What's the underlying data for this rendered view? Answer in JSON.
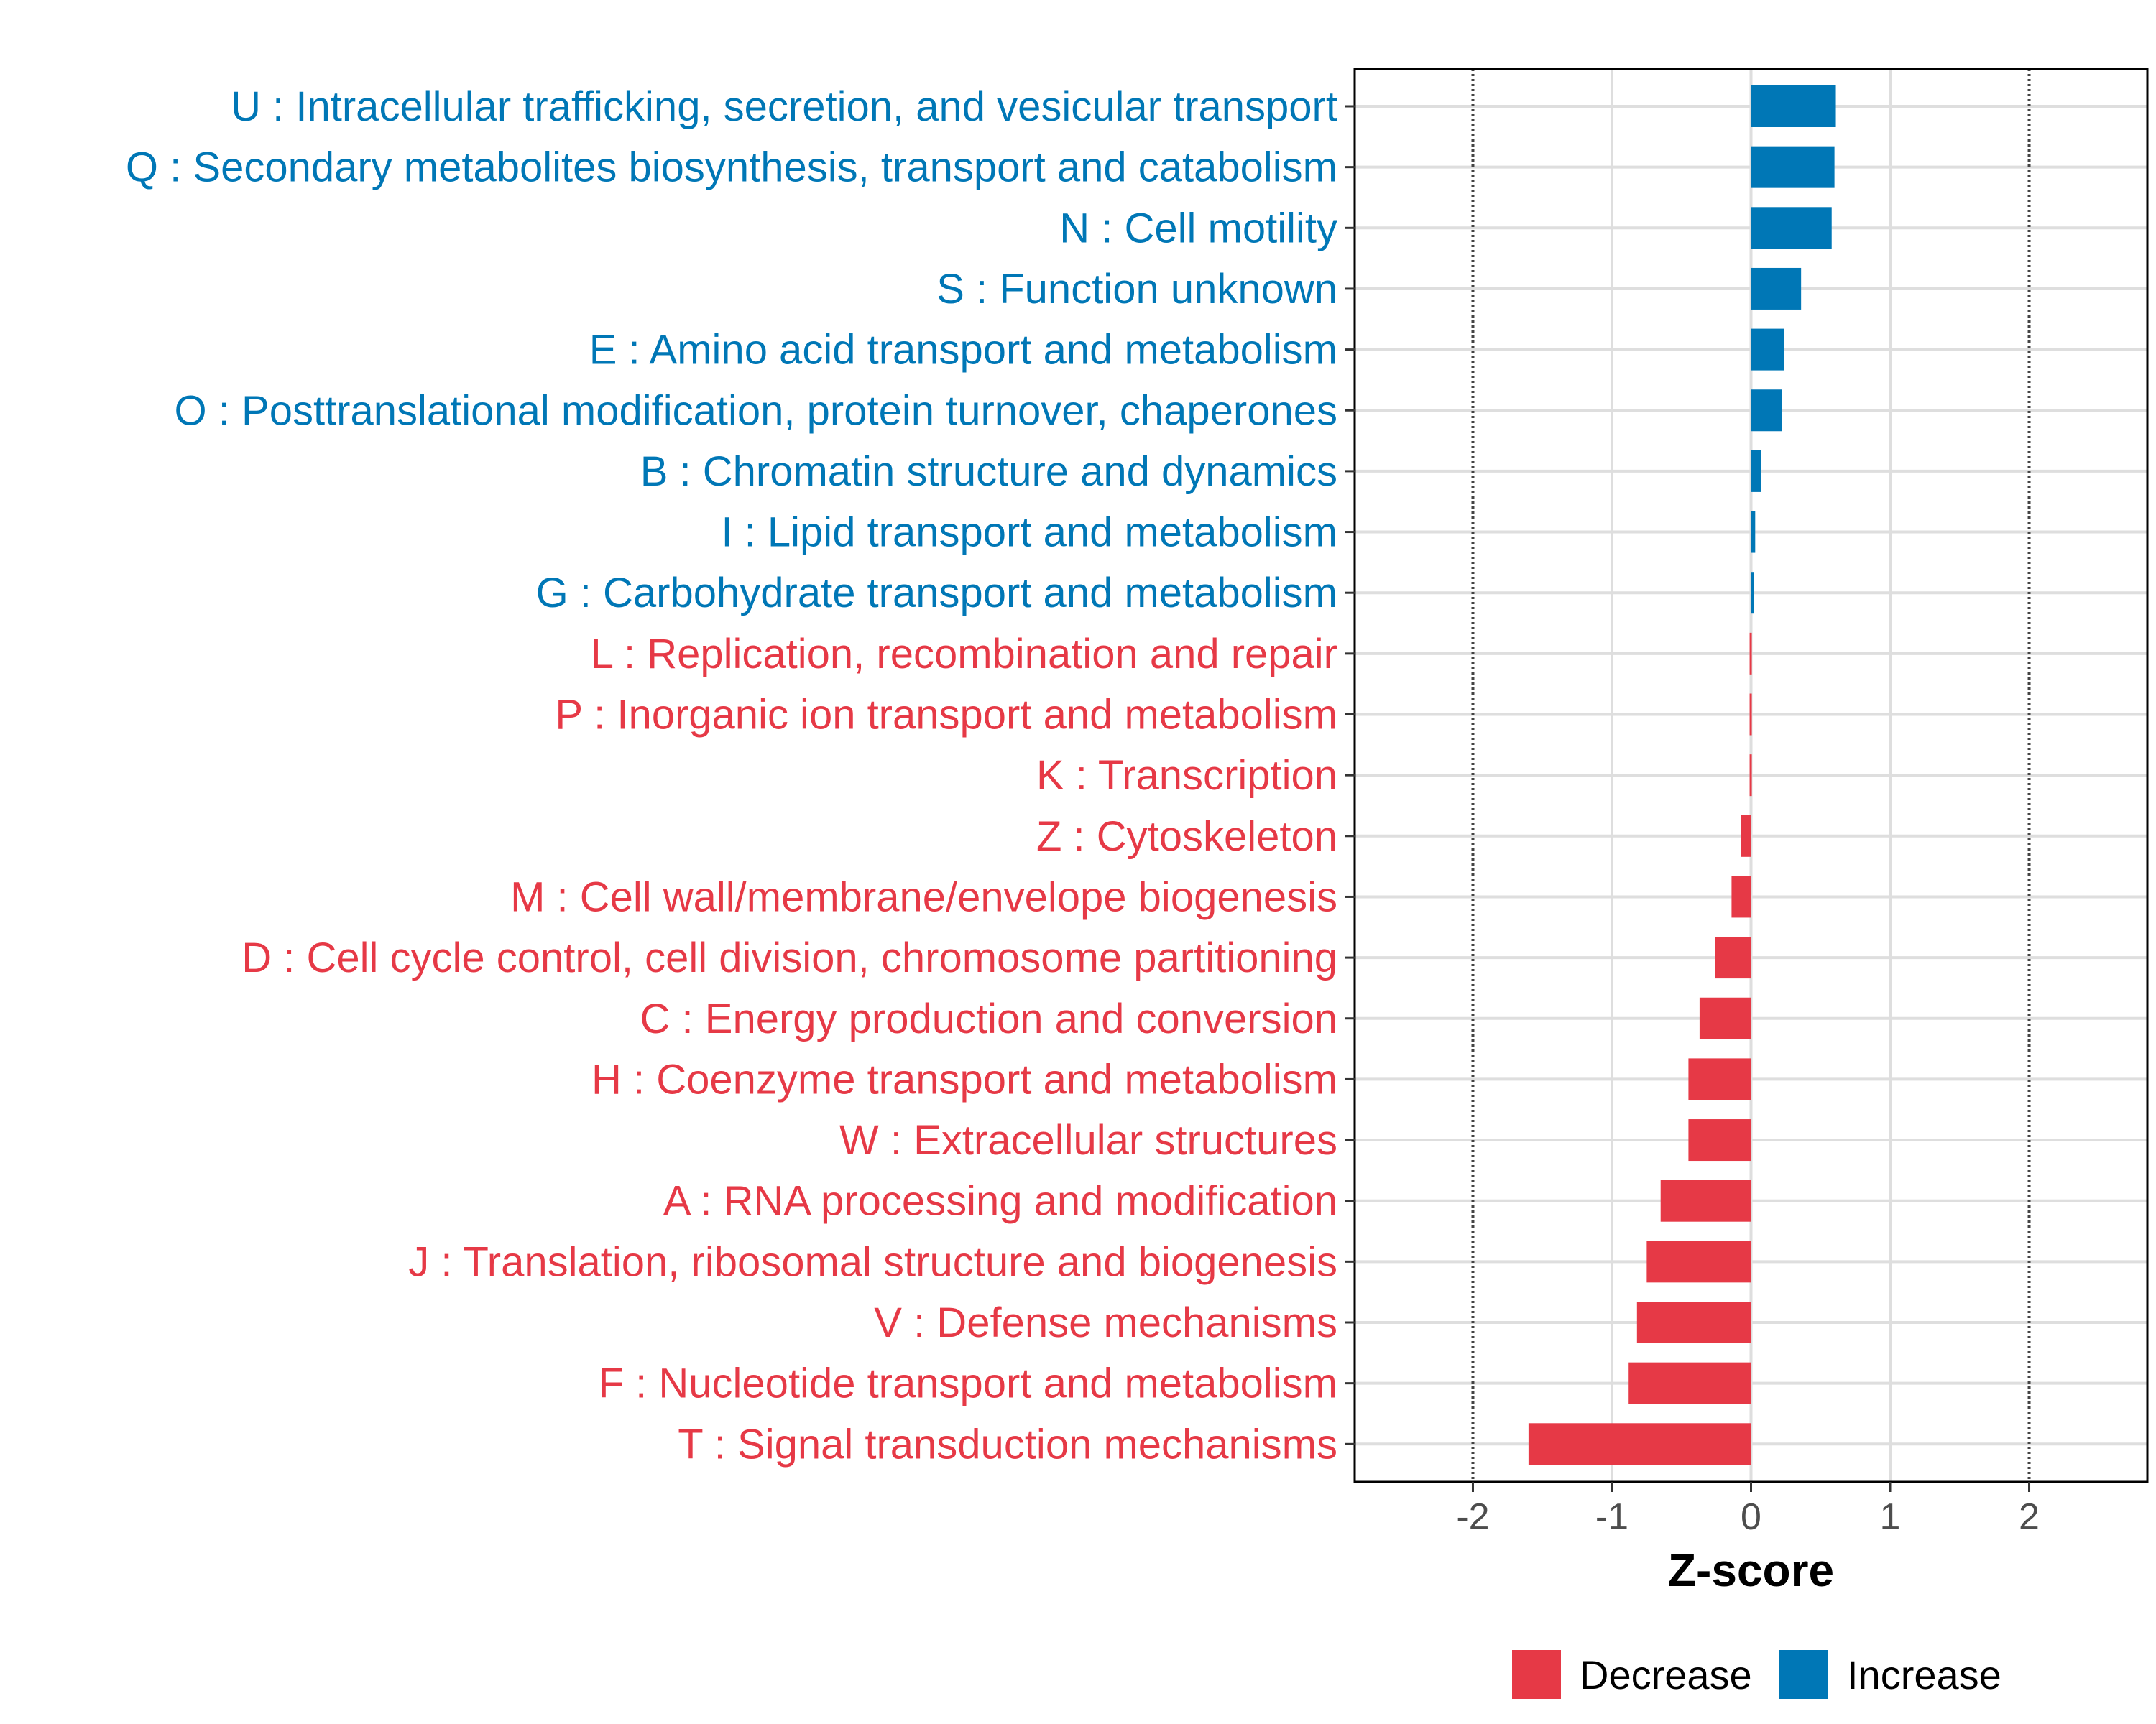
{
  "chart_data": {
    "type": "bar",
    "orientation": "horizontal",
    "title": "",
    "xlabel": "Z-score",
    "ylabel": "",
    "xlim": [
      -2.85,
      2.85
    ],
    "x_ticks": [
      -2,
      -1,
      0,
      1,
      2
    ],
    "reference_lines": [
      -2,
      2
    ],
    "grid": true,
    "legend_position": "bottom",
    "colors": {
      "Decrease": "#e63946",
      "Increase": "#0077b6"
    },
    "legend": [
      {
        "name": "Decrease",
        "color": "#e63946"
      },
      {
        "name": "Increase",
        "color": "#0077b6"
      }
    ],
    "categories": [
      "U : Intracellular trafficking, secretion, and vesicular transport",
      "Q : Secondary metabolites biosynthesis, transport and catabolism",
      "N : Cell motility",
      "S : Function unknown",
      "E : Amino acid transport and metabolism",
      "O : Posttranslational modification, protein turnover, chaperones",
      "B : Chromatin structure and dynamics",
      "I : Lipid transport and metabolism",
      "G : Carbohydrate transport and metabolism",
      "L : Replication, recombination and repair",
      "P : Inorganic ion transport and metabolism",
      "K : Transcription",
      "Z : Cytoskeleton",
      "M : Cell wall/membrane/envelope biogenesis",
      "D : Cell cycle control, cell division, chromosome partitioning",
      "C : Energy production and conversion",
      "H : Coenzyme transport and metabolism",
      "W : Extracellular structures",
      "A : RNA processing and modification",
      "J : Translation, ribosomal structure and biogenesis",
      "V : Defense mechanisms",
      "F : Nucleotide transport and metabolism",
      "T : Signal transduction mechanisms"
    ],
    "values": [
      0.61,
      0.6,
      0.58,
      0.36,
      0.24,
      0.22,
      0.07,
      0.03,
      0.02,
      -0.01,
      -0.01,
      -0.01,
      -0.07,
      -0.14,
      -0.26,
      -0.37,
      -0.45,
      -0.45,
      -0.65,
      -0.75,
      -0.82,
      -0.88,
      -1.6
    ],
    "groups": [
      "Increase",
      "Increase",
      "Increase",
      "Increase",
      "Increase",
      "Increase",
      "Increase",
      "Increase",
      "Increase",
      "Decrease",
      "Decrease",
      "Decrease",
      "Decrease",
      "Decrease",
      "Decrease",
      "Decrease",
      "Decrease",
      "Decrease",
      "Decrease",
      "Decrease",
      "Decrease",
      "Decrease",
      "Decrease"
    ]
  }
}
